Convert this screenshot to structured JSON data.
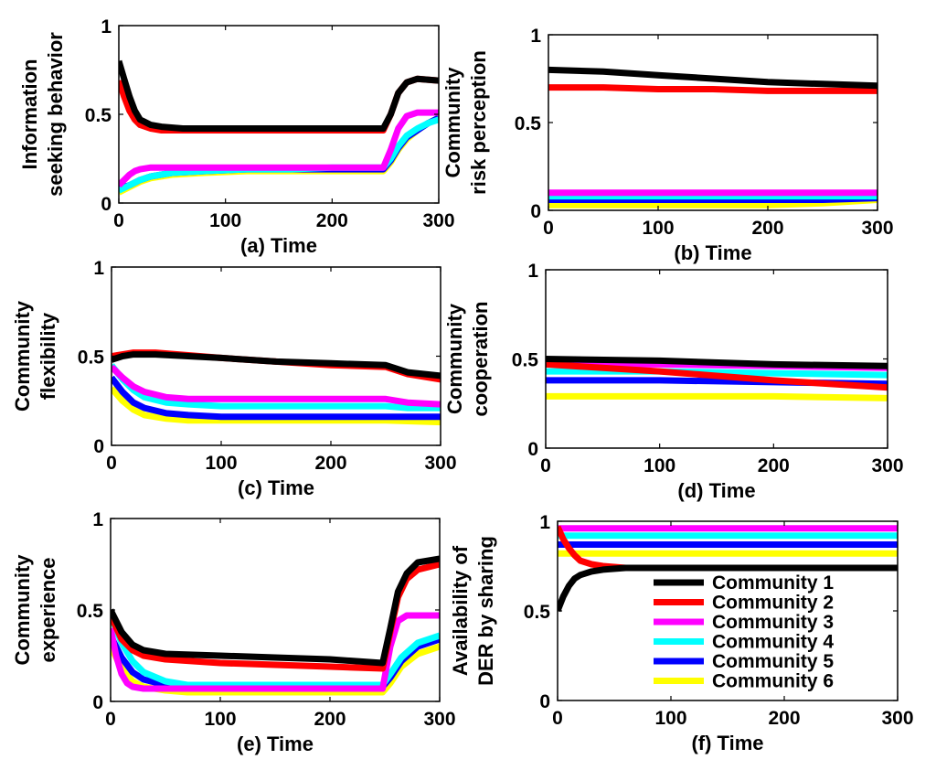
{
  "chart_data": [
    {
      "type": "line",
      "panel": "a",
      "xlabel": "(a) Time",
      "ylabel": [
        "Information",
        "seeking behavior"
      ],
      "xlim": [
        0,
        300
      ],
      "ylim": [
        0,
        1
      ],
      "xticks": [
        0,
        100,
        200,
        300
      ],
      "yticks": [
        0,
        0.5,
        1
      ],
      "series": [
        {
          "name": "Community 1",
          "x": [
            0,
            5,
            10,
            15,
            20,
            30,
            40,
            60,
            100,
            150,
            200,
            248,
            255,
            262,
            270,
            280,
            300
          ],
          "y": [
            0.8,
            0.7,
            0.6,
            0.52,
            0.47,
            0.44,
            0.43,
            0.42,
            0.42,
            0.42,
            0.42,
            0.42,
            0.5,
            0.62,
            0.68,
            0.7,
            0.69
          ]
        },
        {
          "name": "Community 2",
          "x": [
            0,
            5,
            10,
            15,
            20,
            30,
            40,
            60,
            100,
            150,
            200,
            248,
            255,
            262,
            270,
            280,
            300
          ],
          "y": [
            0.69,
            0.6,
            0.52,
            0.47,
            0.44,
            0.42,
            0.41,
            0.41,
            0.41,
            0.41,
            0.41,
            0.41,
            0.5,
            0.62,
            0.68,
            0.7,
            0.69
          ]
        },
        {
          "name": "Community 3",
          "x": [
            0,
            5,
            10,
            15,
            20,
            30,
            60,
            100,
            150,
            200,
            248,
            255,
            262,
            270,
            280,
            300
          ],
          "y": [
            0.1,
            0.13,
            0.16,
            0.18,
            0.19,
            0.2,
            0.2,
            0.2,
            0.2,
            0.2,
            0.2,
            0.3,
            0.42,
            0.49,
            0.51,
            0.51
          ]
        },
        {
          "name": "Community 4",
          "x": [
            0,
            10,
            20,
            30,
            50,
            80,
            120,
            160,
            200,
            248,
            255,
            262,
            270,
            280,
            290,
            300
          ],
          "y": [
            0.07,
            0.1,
            0.13,
            0.15,
            0.17,
            0.18,
            0.19,
            0.19,
            0.2,
            0.2,
            0.25,
            0.32,
            0.38,
            0.42,
            0.45,
            0.47
          ]
        },
        {
          "name": "Community 5",
          "x": [
            0,
            10,
            20,
            30,
            50,
            80,
            120,
            160,
            200,
            248,
            255,
            262,
            270,
            280,
            290,
            300
          ],
          "y": [
            0.08,
            0.1,
            0.13,
            0.15,
            0.17,
            0.18,
            0.19,
            0.19,
            0.19,
            0.19,
            0.24,
            0.31,
            0.37,
            0.41,
            0.45,
            0.48
          ]
        },
        {
          "name": "Community 6",
          "x": [
            0,
            10,
            20,
            30,
            50,
            80,
            120,
            160,
            200,
            248,
            255,
            262,
            270,
            280,
            290,
            300
          ],
          "y": [
            0.06,
            0.09,
            0.12,
            0.14,
            0.16,
            0.17,
            0.18,
            0.18,
            0.18,
            0.18,
            0.23,
            0.3,
            0.36,
            0.41,
            0.45,
            0.48
          ]
        }
      ]
    },
    {
      "type": "line",
      "panel": "b",
      "xlabel": "(b) Time",
      "ylabel": [
        "Community",
        "risk perception"
      ],
      "xlim": [
        0,
        300
      ],
      "ylim": [
        0,
        1
      ],
      "xticks": [
        0,
        100,
        200,
        300
      ],
      "yticks": [
        0,
        0.5,
        1
      ],
      "series": [
        {
          "name": "Community 1",
          "x": [
            0,
            50,
            100,
            150,
            200,
            250,
            300
          ],
          "y": [
            0.8,
            0.79,
            0.77,
            0.75,
            0.73,
            0.72,
            0.71
          ]
        },
        {
          "name": "Community 2",
          "x": [
            0,
            50,
            100,
            150,
            200,
            250,
            300
          ],
          "y": [
            0.7,
            0.7,
            0.69,
            0.69,
            0.68,
            0.68,
            0.68
          ]
        },
        {
          "name": "Community 3",
          "x": [
            0,
            300
          ],
          "y": [
            0.1,
            0.1
          ]
        },
        {
          "name": "Community 4",
          "x": [
            0,
            300
          ],
          "y": [
            0.08,
            0.08
          ]
        },
        {
          "name": "Community 5",
          "x": [
            0,
            100,
            200,
            250,
            300
          ],
          "y": [
            0.06,
            0.06,
            0.06,
            0.06,
            0.07
          ]
        },
        {
          "name": "Community 6",
          "x": [
            0,
            100,
            200,
            250,
            300
          ],
          "y": [
            0.03,
            0.03,
            0.03,
            0.04,
            0.06
          ]
        }
      ]
    },
    {
      "type": "line",
      "panel": "c",
      "xlabel": "(c) Time",
      "ylabel": [
        "Community",
        "flexibility"
      ],
      "xlim": [
        0,
        300
      ],
      "ylim": [
        0,
        1
      ],
      "xticks": [
        0,
        100,
        200,
        300
      ],
      "yticks": [
        0,
        0.5,
        1
      ],
      "series": [
        {
          "name": "Community 1",
          "x": [
            0,
            10,
            20,
            40,
            100,
            150,
            200,
            250,
            270,
            300
          ],
          "y": [
            0.48,
            0.5,
            0.51,
            0.51,
            0.49,
            0.47,
            0.46,
            0.45,
            0.41,
            0.39
          ]
        },
        {
          "name": "Community 2",
          "x": [
            0,
            10,
            20,
            40,
            100,
            150,
            200,
            250,
            270,
            300
          ],
          "y": [
            0.5,
            0.51,
            0.52,
            0.52,
            0.49,
            0.47,
            0.45,
            0.44,
            0.4,
            0.37
          ]
        },
        {
          "name": "Community 3",
          "x": [
            0,
            10,
            20,
            30,
            50,
            70,
            100,
            150,
            200,
            250,
            270,
            300
          ],
          "y": [
            0.44,
            0.38,
            0.33,
            0.3,
            0.27,
            0.26,
            0.26,
            0.26,
            0.26,
            0.26,
            0.24,
            0.23
          ]
        },
        {
          "name": "Community 4",
          "x": [
            0,
            10,
            20,
            30,
            50,
            70,
            100,
            150,
            200,
            250,
            270,
            300
          ],
          "y": [
            0.45,
            0.37,
            0.31,
            0.27,
            0.24,
            0.23,
            0.22,
            0.22,
            0.22,
            0.22,
            0.21,
            0.21
          ]
        },
        {
          "name": "Community 5",
          "x": [
            0,
            10,
            20,
            30,
            50,
            70,
            100,
            150,
            200,
            250,
            300
          ],
          "y": [
            0.38,
            0.3,
            0.24,
            0.21,
            0.18,
            0.17,
            0.16,
            0.16,
            0.16,
            0.16,
            0.16
          ]
        },
        {
          "name": "Community 6",
          "x": [
            0,
            10,
            20,
            30,
            50,
            70,
            100,
            150,
            200,
            250,
            300
          ],
          "y": [
            0.32,
            0.25,
            0.2,
            0.17,
            0.15,
            0.14,
            0.14,
            0.14,
            0.14,
            0.14,
            0.13
          ]
        }
      ]
    },
    {
      "type": "line",
      "panel": "d",
      "xlabel": "(d) Time",
      "ylabel": [
        "Community",
        "cooperation"
      ],
      "xlim": [
        0,
        300
      ],
      "ylim": [
        0,
        1
      ],
      "xticks": [
        0,
        100,
        200,
        300
      ],
      "yticks": [
        0,
        0.5,
        1
      ],
      "series": [
        {
          "name": "Community 1",
          "x": [
            0,
            100,
            200,
            300
          ],
          "y": [
            0.5,
            0.49,
            0.47,
            0.46
          ]
        },
        {
          "name": "Community 2",
          "x": [
            0,
            100,
            200,
            300
          ],
          "y": [
            0.47,
            0.43,
            0.38,
            0.34
          ]
        },
        {
          "name": "Community 3",
          "x": [
            0,
            100,
            200,
            300
          ],
          "y": [
            0.47,
            0.47,
            0.46,
            0.45
          ]
        },
        {
          "name": "Community 4",
          "x": [
            0,
            100,
            200,
            300
          ],
          "y": [
            0.43,
            0.43,
            0.42,
            0.41
          ]
        },
        {
          "name": "Community 5",
          "x": [
            0,
            100,
            200,
            300
          ],
          "y": [
            0.38,
            0.38,
            0.37,
            0.36
          ]
        },
        {
          "name": "Community 6",
          "x": [
            0,
            100,
            200,
            300
          ],
          "y": [
            0.29,
            0.29,
            0.29,
            0.28
          ]
        }
      ]
    },
    {
      "type": "line",
      "panel": "e",
      "xlabel": "(e) Time",
      "ylabel": [
        "Community",
        "experience"
      ],
      "xlim": [
        0,
        300
      ],
      "ylim": [
        0,
        1
      ],
      "xticks": [
        0,
        100,
        200,
        300
      ],
      "yticks": [
        0,
        0.5,
        1
      ],
      "series": [
        {
          "name": "Community 1",
          "x": [
            0,
            10,
            20,
            30,
            50,
            100,
            150,
            200,
            248,
            255,
            262,
            270,
            280,
            300
          ],
          "y": [
            0.5,
            0.38,
            0.31,
            0.28,
            0.26,
            0.25,
            0.24,
            0.23,
            0.21,
            0.4,
            0.6,
            0.7,
            0.76,
            0.78
          ]
        },
        {
          "name": "Community 2",
          "x": [
            0,
            10,
            20,
            30,
            50,
            100,
            150,
            200,
            248,
            255,
            262,
            270,
            280,
            300
          ],
          "y": [
            0.47,
            0.34,
            0.28,
            0.25,
            0.23,
            0.21,
            0.2,
            0.19,
            0.18,
            0.38,
            0.57,
            0.67,
            0.72,
            0.75
          ]
        },
        {
          "name": "Community 3",
          "x": [
            0,
            5,
            10,
            15,
            20,
            30,
            60,
            100,
            150,
            200,
            248,
            255,
            262,
            270,
            300
          ],
          "y": [
            0.4,
            0.25,
            0.15,
            0.1,
            0.08,
            0.07,
            0.07,
            0.07,
            0.07,
            0.07,
            0.07,
            0.3,
            0.44,
            0.47,
            0.47
          ]
        },
        {
          "name": "Community 4",
          "x": [
            0,
            10,
            20,
            30,
            50,
            70,
            100,
            150,
            200,
            248,
            255,
            265,
            280,
            300
          ],
          "y": [
            0.47,
            0.32,
            0.22,
            0.16,
            0.11,
            0.09,
            0.09,
            0.09,
            0.09,
            0.09,
            0.15,
            0.24,
            0.32,
            0.36
          ]
        },
        {
          "name": "Community 5",
          "x": [
            0,
            10,
            20,
            30,
            50,
            70,
            100,
            150,
            200,
            248,
            255,
            265,
            280,
            300
          ],
          "y": [
            0.36,
            0.24,
            0.16,
            0.12,
            0.09,
            0.08,
            0.08,
            0.08,
            0.08,
            0.08,
            0.13,
            0.22,
            0.3,
            0.34
          ]
        },
        {
          "name": "Community 6",
          "x": [
            0,
            10,
            20,
            30,
            50,
            70,
            100,
            150,
            200,
            248,
            255,
            265,
            280,
            300
          ],
          "y": [
            0.3,
            0.18,
            0.11,
            0.08,
            0.06,
            0.05,
            0.05,
            0.05,
            0.05,
            0.05,
            0.1,
            0.19,
            0.26,
            0.3
          ]
        }
      ]
    },
    {
      "type": "line",
      "panel": "f",
      "xlabel": "(f) Time",
      "ylabel": [
        "Availability of",
        "DER by sharing"
      ],
      "xlim": [
        0,
        300
      ],
      "ylim": [
        0,
        1
      ],
      "xticks": [
        0,
        100,
        200,
        300
      ],
      "yticks": [
        0,
        0.5,
        1
      ],
      "legend": "lower-right",
      "series": [
        {
          "name": "Community 1",
          "x": [
            0,
            5,
            10,
            15,
            20,
            30,
            40,
            60,
            100,
            200,
            300
          ],
          "y": [
            0.5,
            0.58,
            0.64,
            0.68,
            0.7,
            0.72,
            0.73,
            0.74,
            0.74,
            0.74,
            0.74
          ]
        },
        {
          "name": "Community 2",
          "x": [
            0,
            5,
            10,
            15,
            20,
            30,
            40,
            60,
            100,
            200,
            300
          ],
          "y": [
            0.97,
            0.9,
            0.85,
            0.81,
            0.78,
            0.76,
            0.75,
            0.74,
            0.74,
            0.74,
            0.74
          ]
        },
        {
          "name": "Community 3",
          "x": [
            0,
            300
          ],
          "y": [
            0.96,
            0.96
          ]
        },
        {
          "name": "Community 4",
          "x": [
            0,
            300
          ],
          "y": [
            0.92,
            0.92
          ]
        },
        {
          "name": "Community 5",
          "x": [
            0,
            300
          ],
          "y": [
            0.87,
            0.87
          ]
        },
        {
          "name": "Community 6",
          "x": [
            0,
            300
          ],
          "y": [
            0.82,
            0.82
          ]
        }
      ]
    }
  ],
  "legend": {
    "entries": [
      "Community 1",
      "Community 2",
      "Community 3",
      "Community 4",
      "Community 5",
      "Community 6"
    ]
  },
  "colors": {
    "Community 1": "#000000",
    "Community 2": "#ff0000",
    "Community 3": "#ff00ff",
    "Community 4": "#00ffff",
    "Community 5": "#0000ff",
    "Community 6": "#ffff00"
  }
}
